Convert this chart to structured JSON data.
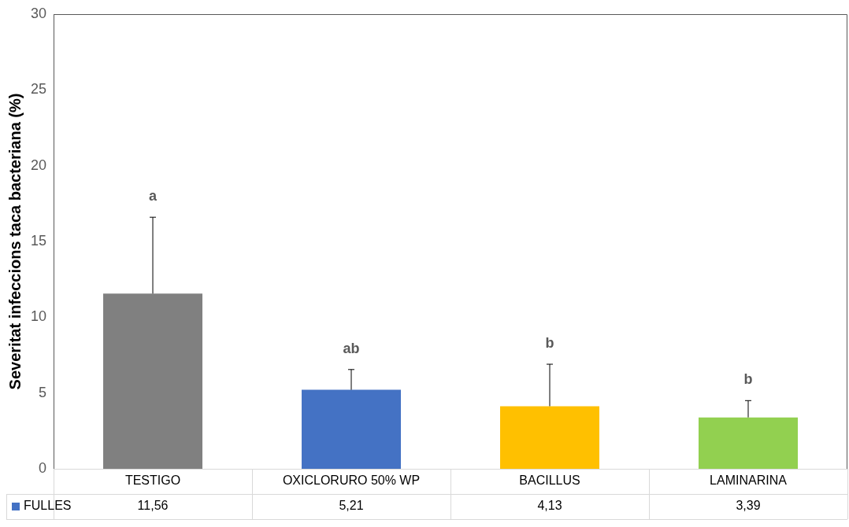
{
  "chart_data": {
    "type": "bar",
    "ylabel": "Severitat infeccions taca bacteriana (%)",
    "categories": [
      "TESTIGO",
      "OXICLORURO 50% WP",
      "BACILLUS",
      "LAMINARINA"
    ],
    "series": [
      {
        "name": "FULLES",
        "color": "#4472c4",
        "colors": [
          "#808080",
          "#4472c4",
          "#ffc000",
          "#92d050"
        ],
        "values": [
          11.56,
          5.21,
          4.13,
          3.39
        ],
        "value_labels": [
          "11,56",
          "5,21",
          "4,13",
          "3,39"
        ],
        "errors": [
          [
            11.56,
            16.6
          ],
          [
            5.21,
            6.55
          ],
          [
            4.13,
            6.9
          ],
          [
            3.39,
            4.5
          ]
        ]
      }
    ],
    "ylim": [
      0,
      30
    ],
    "yticks": [
      0,
      5,
      10,
      15,
      20,
      25,
      30
    ],
    "grid": false,
    "legend": "bottom",
    "annotations": [
      "a",
      "ab",
      "b",
      "b"
    ]
  }
}
